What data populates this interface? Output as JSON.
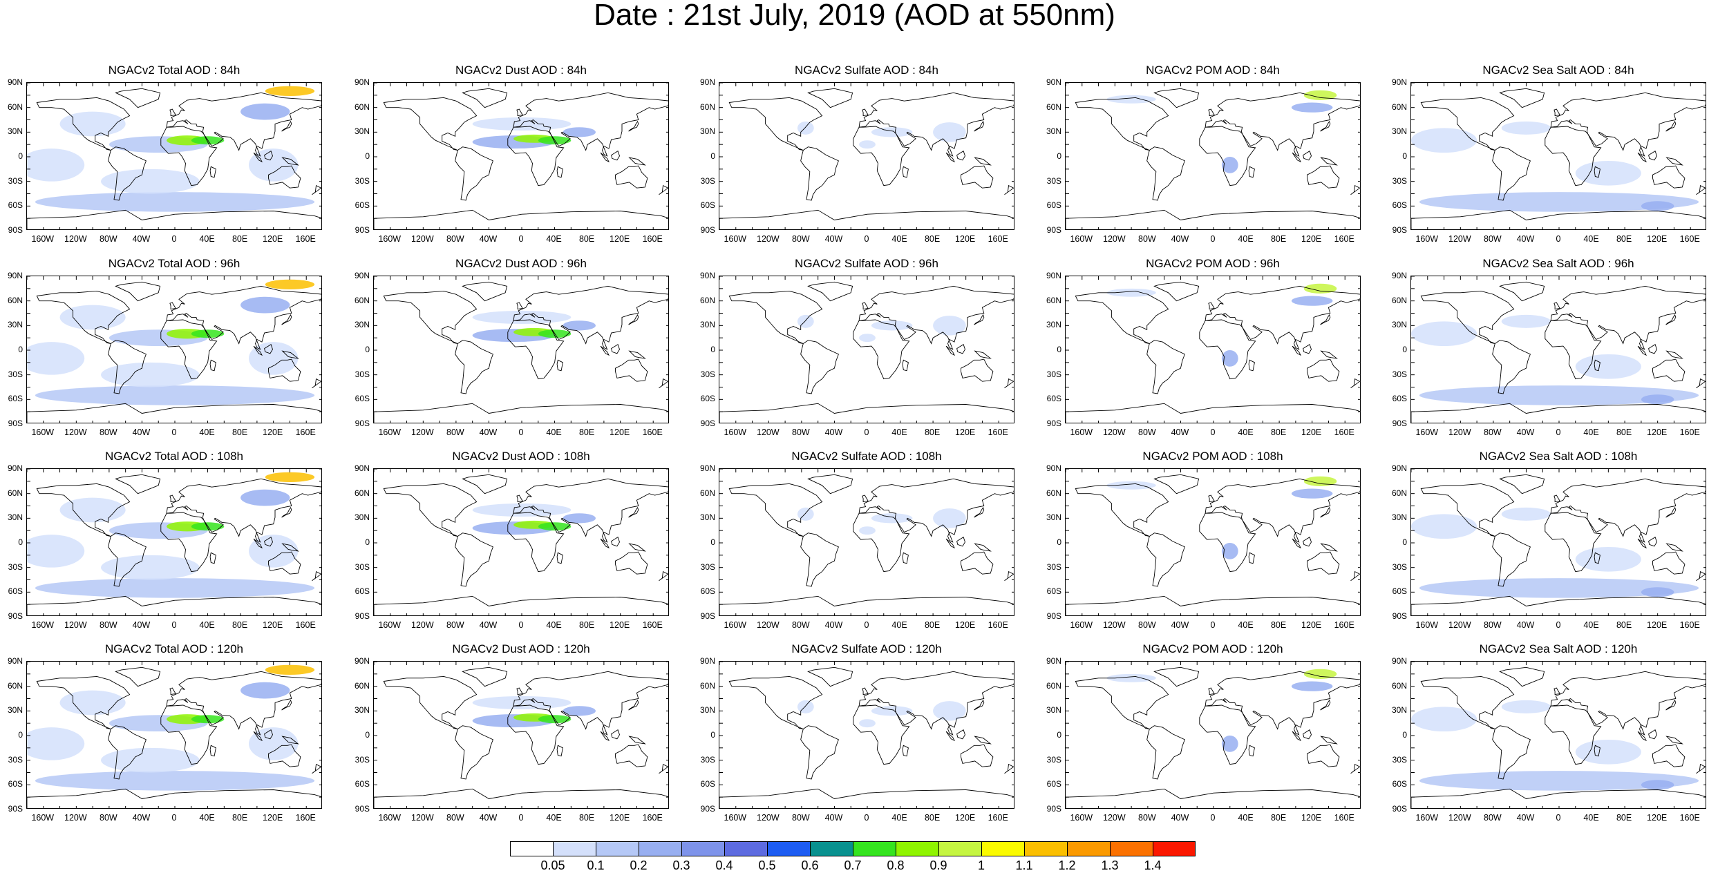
{
  "title": "Date : 21st July, 2019 (AOD at 550nm)",
  "lat_labels": [
    "90N",
    "60N",
    "30N",
    "0",
    "30S",
    "60S",
    "90S"
  ],
  "lon_labels": [
    "160W",
    "120W",
    "80W",
    "40W",
    "0",
    "40E",
    "80E",
    "120E",
    "160E"
  ],
  "panel_titles": [
    [
      "NGACv2 Total AOD : 84h",
      "NGACv2 Dust AOD : 84h",
      "NGACv2 Sulfate AOD : 84h",
      "NGACv2 POM AOD : 84h",
      "NGACv2 Sea Salt AOD : 84h"
    ],
    [
      "NGACv2 Total AOD : 96h",
      "NGACv2 Dust AOD : 96h",
      "NGACv2 Sulfate AOD : 96h",
      "NGACv2 POM AOD : 96h",
      "NGACv2 Sea Salt AOD : 96h"
    ],
    [
      "NGACv2 Total AOD : 108h",
      "NGACv2 Dust AOD : 108h",
      "NGACv2 Sulfate AOD : 108h",
      "NGACv2 POM AOD : 108h",
      "NGACv2 Sea Salt AOD : 108h"
    ],
    [
      "NGACv2 Total AOD : 120h",
      "NGACv2 Dust AOD : 120h",
      "NGACv2 Sulfate AOD : 120h",
      "NGACv2 POM AOD : 120h",
      "NGACv2 Sea Salt  AOD : 120h"
    ]
  ],
  "colorbar": {
    "labels": [
      "0.05",
      "0.1",
      "0.2",
      "0.3",
      "0.4",
      "0.5",
      "0.6",
      "0.7",
      "0.8",
      "0.9",
      "1",
      "1.1",
      "1.2",
      "1.3",
      "1.4"
    ],
    "colors": [
      "#ffffff",
      "#d4e0fb",
      "#b5c8f6",
      "#98aff1",
      "#7e93ea",
      "#5d6be0",
      "#1d5cf2",
      "#08918f",
      "#35e41f",
      "#8ff400",
      "#c5f541",
      "#fbfb00",
      "#fbbf00",
      "#fb9a00",
      "#fb7100",
      "#fb1800"
    ]
  }
}
